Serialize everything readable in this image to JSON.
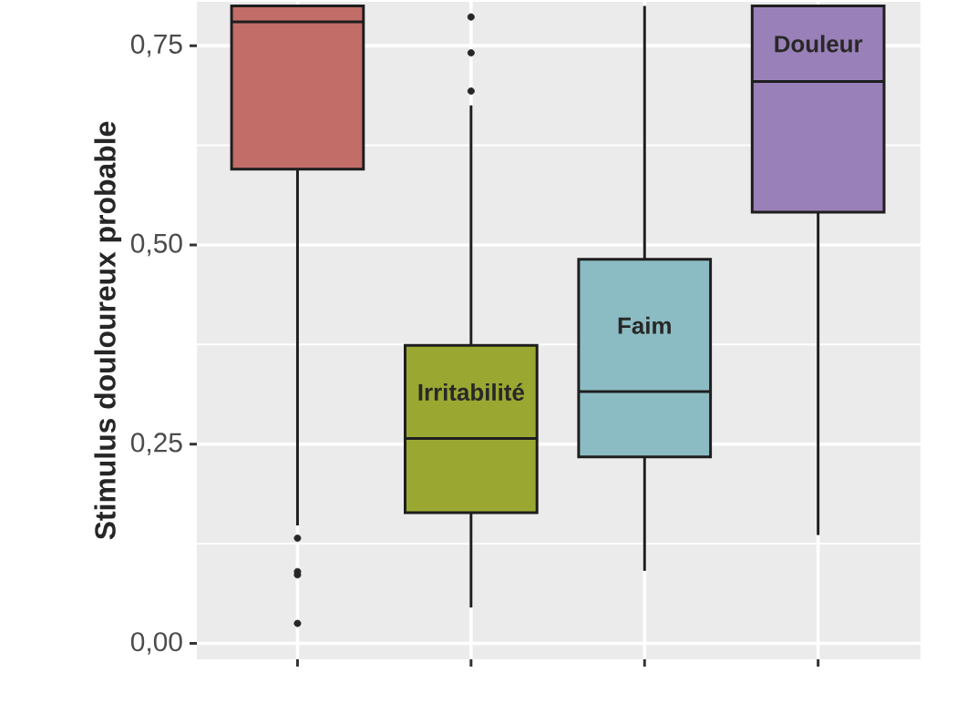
{
  "chart_data": {
    "type": "box",
    "ylabel": "Stimulus douloureux probable",
    "categories": [
      null,
      "Irritabilité",
      "Faim",
      "Douleur"
    ],
    "colors": [
      "#c26d68",
      "#9aa832",
      "#8cbcc3",
      "#9a80b8"
    ],
    "boxes": [
      {
        "low": 0.148,
        "q1": 0.595,
        "median": 0.78,
        "q3": 0.8,
        "high": 0.8,
        "outliers": [
          0.132,
          0.09,
          0.086,
          0.025
        ]
      },
      {
        "low": 0.045,
        "q1": 0.164,
        "median": 0.257,
        "q3": 0.374,
        "high": 0.675,
        "outliers": [
          0.693,
          0.741,
          0.786
        ]
      },
      {
        "low": 0.091,
        "q1": 0.234,
        "median": 0.316,
        "q3": 0.482,
        "high": 0.8
      },
      {
        "low": 0.136,
        "q1": 0.541,
        "median": 0.705,
        "q3": 0.8,
        "high": 0.8
      }
    ],
    "ylim": [
      -0.02,
      0.805
    ],
    "yticks": [
      {
        "value": 0,
        "label": "0,00"
      },
      {
        "value": 0.25,
        "label": "0,25"
      },
      {
        "value": 0.5,
        "label": "0,50"
      },
      {
        "value": 0.75,
        "label": "0,75"
      }
    ],
    "grid": true,
    "tick_labels": "y"
  }
}
